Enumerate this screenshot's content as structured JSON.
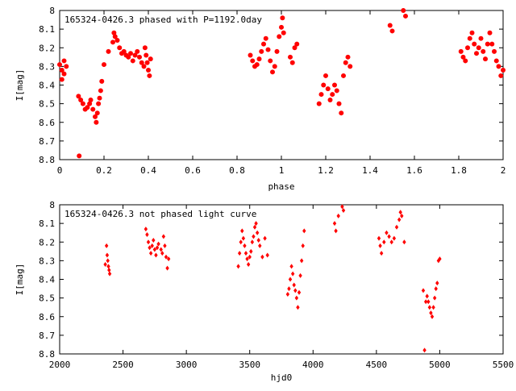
{
  "chart_data": [
    {
      "type": "scatter",
      "title": "165324-0426.3 phased with P=1192.0day",
      "xlabel": "phase",
      "ylabel": "I[mag]",
      "xlim": [
        0,
        2
      ],
      "ylim": [
        8.8,
        8
      ],
      "y_inverted": true,
      "grid": false,
      "color": "#ff0000",
      "marker": "filled-circle",
      "xticks": [
        0,
        0.2,
        0.4,
        0.6,
        0.8,
        1,
        1.2,
        1.4,
        1.6,
        1.8,
        2
      ],
      "xtick_labels": [
        "0",
        "0.2",
        "0.4",
        "0.6",
        "0.8",
        "1",
        "1.2",
        "1.4",
        "1.6",
        "1.8",
        "2"
      ],
      "yticks": [
        8,
        8.1,
        8.2,
        8.3,
        8.4,
        8.5,
        8.6,
        8.7,
        8.8
      ],
      "ytick_labels": [
        "8",
        "8.1",
        "8.2",
        "8.3",
        "8.4",
        "8.5",
        "8.6",
        "8.7",
        "8.8"
      ],
      "series": [
        {
          "x": [
            0.0,
            0.01,
            0.02,
            0.03,
            0.01,
            0.02,
            0.085,
            0.095,
            0.105,
            0.115,
            0.125,
            0.135,
            0.14,
            0.15,
            0.16,
            0.165,
            0.17,
            0.175,
            0.18,
            0.185,
            0.19,
            0.088,
            0.2,
            0.22,
            0.24,
            0.245,
            0.25,
            0.26,
            0.27,
            0.28,
            0.29,
            0.3,
            0.31,
            0.32,
            0.33,
            0.34,
            0.35,
            0.36,
            0.37,
            0.38,
            0.385,
            0.39,
            0.395,
            0.4,
            0.405,
            0.41,
            0.86,
            0.87,
            0.88,
            0.89,
            0.9,
            0.91,
            0.92,
            0.93,
            0.94,
            0.95,
            0.96,
            0.97,
            0.98,
            0.99,
            1.0,
            1.005,
            1.01,
            1.04,
            1.05,
            1.06,
            1.07,
            1.17,
            1.18,
            1.19,
            1.2,
            1.21,
            1.22,
            1.23,
            1.24,
            1.25,
            1.26,
            1.27,
            1.28,
            1.29,
            1.3,
            1.31,
            1.49,
            1.5,
            1.55,
            1.56,
            1.81,
            1.82,
            1.83,
            1.84,
            1.85,
            1.86,
            1.87,
            1.88,
            1.89,
            1.9,
            1.91,
            1.92,
            1.93,
            1.94,
            1.95,
            1.96,
            1.97,
            1.98,
            1.99,
            2.0
          ],
          "y": [
            8.29,
            8.32,
            8.34,
            8.3,
            8.37,
            8.27,
            8.46,
            8.48,
            8.5,
            8.53,
            8.52,
            8.5,
            8.48,
            8.53,
            8.57,
            8.6,
            8.55,
            8.5,
            8.47,
            8.43,
            8.38,
            8.78,
            8.29,
            8.22,
            8.17,
            8.12,
            8.14,
            8.16,
            8.2,
            8.23,
            8.22,
            8.24,
            8.25,
            8.23,
            8.27,
            8.24,
            8.22,
            8.25,
            8.28,
            8.3,
            8.2,
            8.24,
            8.28,
            8.32,
            8.35,
            8.26,
            8.24,
            8.27,
            8.3,
            8.29,
            8.26,
            8.22,
            8.18,
            8.15,
            8.21,
            8.27,
            8.33,
            8.3,
            8.22,
            8.14,
            8.09,
            8.04,
            8.12,
            8.25,
            8.28,
            8.2,
            8.18,
            8.5,
            8.45,
            8.4,
            8.35,
            8.42,
            8.48,
            8.45,
            8.4,
            8.43,
            8.5,
            8.55,
            8.35,
            8.28,
            8.25,
            8.3,
            8.08,
            8.11,
            8.0,
            8.03,
            8.22,
            8.25,
            8.27,
            8.2,
            8.15,
            8.12,
            8.18,
            8.23,
            8.2,
            8.15,
            8.22,
            8.26,
            8.18,
            8.12,
            8.18,
            8.22,
            8.27,
            8.3,
            8.35,
            8.32
          ]
        }
      ]
    },
    {
      "type": "scatter",
      "title": "165324-0426.3 not phased light curve",
      "xlabel": "hjd0",
      "ylabel": "I[mag]",
      "xlim": [
        2000,
        5500
      ],
      "ylim": [
        8.8,
        8
      ],
      "y_inverted": true,
      "grid": false,
      "color": "#ff0000",
      "marker": "diamond",
      "xticks": [
        2000,
        2500,
        3000,
        3500,
        4000,
        4500,
        5000,
        5500
      ],
      "xtick_labels": [
        "2000",
        "2500",
        "3000",
        "3500",
        "4000",
        "4500",
        "5000",
        "5500"
      ],
      "yticks": [
        8,
        8.1,
        8.2,
        8.3,
        8.4,
        8.5,
        8.6,
        8.7,
        8.8
      ],
      "ytick_labels": [
        "8",
        "8.1",
        "8.2",
        "8.3",
        "8.4",
        "8.5",
        "8.6",
        "8.7",
        "8.8"
      ],
      "series": [
        {
          "x": [
            2360,
            2370,
            2375,
            2380,
            2385,
            2390,
            2395,
            2680,
            2690,
            2700,
            2710,
            2720,
            2730,
            2740,
            2750,
            2760,
            2770,
            2780,
            2800,
            2810,
            2820,
            2830,
            2840,
            2850,
            2860,
            3410,
            3420,
            3430,
            3440,
            3450,
            3460,
            3470,
            3480,
            3490,
            3500,
            3510,
            3520,
            3530,
            3540,
            3550,
            3560,
            3570,
            3580,
            3600,
            3620,
            3640,
            3800,
            3810,
            3820,
            3830,
            3840,
            3850,
            3860,
            3870,
            3880,
            3890,
            3900,
            3910,
            3920,
            3930,
            4170,
            4180,
            4200,
            4230,
            4240,
            4520,
            4530,
            4540,
            4560,
            4580,
            4600,
            4620,
            4640,
            4660,
            4680,
            4690,
            4700,
            4720,
            4870,
            4880,
            4890,
            4900,
            4910,
            4920,
            4930,
            4940,
            4950,
            4960,
            4970,
            4980,
            4990,
            5000
          ],
          "y": [
            8.32,
            8.22,
            8.27,
            8.3,
            8.33,
            8.35,
            8.37,
            8.13,
            8.16,
            8.2,
            8.23,
            8.26,
            8.22,
            8.19,
            8.24,
            8.27,
            8.23,
            8.21,
            8.24,
            8.26,
            8.17,
            8.22,
            8.28,
            8.34,
            8.29,
            8.33,
            8.26,
            8.2,
            8.14,
            8.18,
            8.22,
            8.26,
            8.29,
            8.32,
            8.28,
            8.25,
            8.2,
            8.17,
            8.12,
            8.1,
            8.15,
            8.19,
            8.22,
            8.28,
            8.18,
            8.27,
            8.48,
            8.45,
            8.4,
            8.33,
            8.37,
            8.43,
            8.46,
            8.5,
            8.55,
            8.47,
            8.38,
            8.3,
            8.22,
            8.14,
            8.1,
            8.14,
            8.06,
            8.01,
            8.03,
            8.18,
            8.22,
            8.26,
            8.2,
            8.15,
            8.17,
            8.2,
            8.18,
            8.12,
            8.08,
            8.04,
            8.06,
            8.2,
            8.46,
            8.78,
            8.52,
            8.49,
            8.52,
            8.55,
            8.58,
            8.6,
            8.55,
            8.5,
            8.45,
            8.42,
            8.3,
            8.29
          ]
        }
      ]
    }
  ]
}
